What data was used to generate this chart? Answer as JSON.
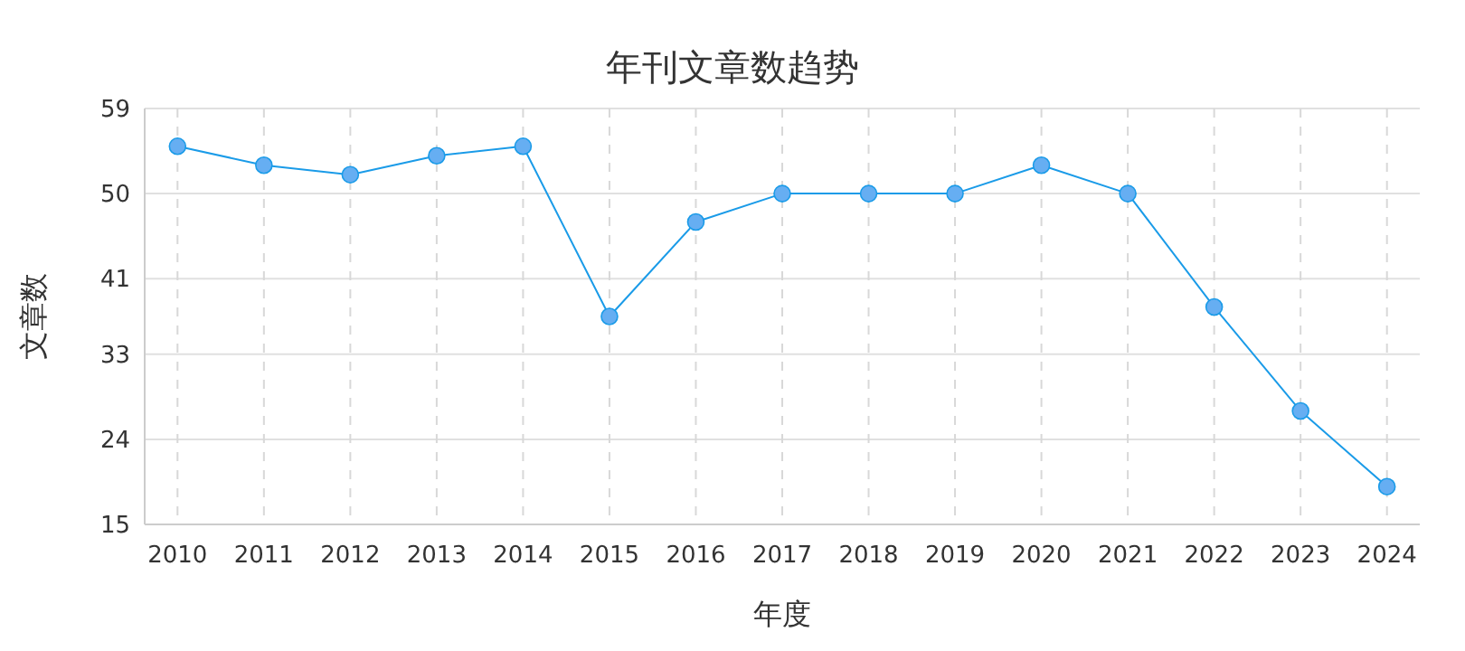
{
  "chart_data": {
    "type": "line",
    "title": "年刊文章数趋势",
    "xlabel": "年度",
    "ylabel": "文章数",
    "categories": [
      "2010",
      "2011",
      "2012",
      "2013",
      "2014",
      "2015",
      "2016",
      "2017",
      "2018",
      "2019",
      "2020",
      "2021",
      "2022",
      "2023",
      "2024"
    ],
    "series": [
      {
        "color": "#1a9be8",
        "values": [
          55,
          53,
          52,
          54,
          55,
          37,
          47,
          50,
          50,
          50,
          53,
          50,
          38,
          27,
          19
        ]
      }
    ],
    "ylim": [
      15,
      59
    ],
    "yticks": [
      15,
      24,
      33,
      41,
      50,
      59
    ],
    "grid": true,
    "marker": "circle",
    "line_style": "solid"
  }
}
